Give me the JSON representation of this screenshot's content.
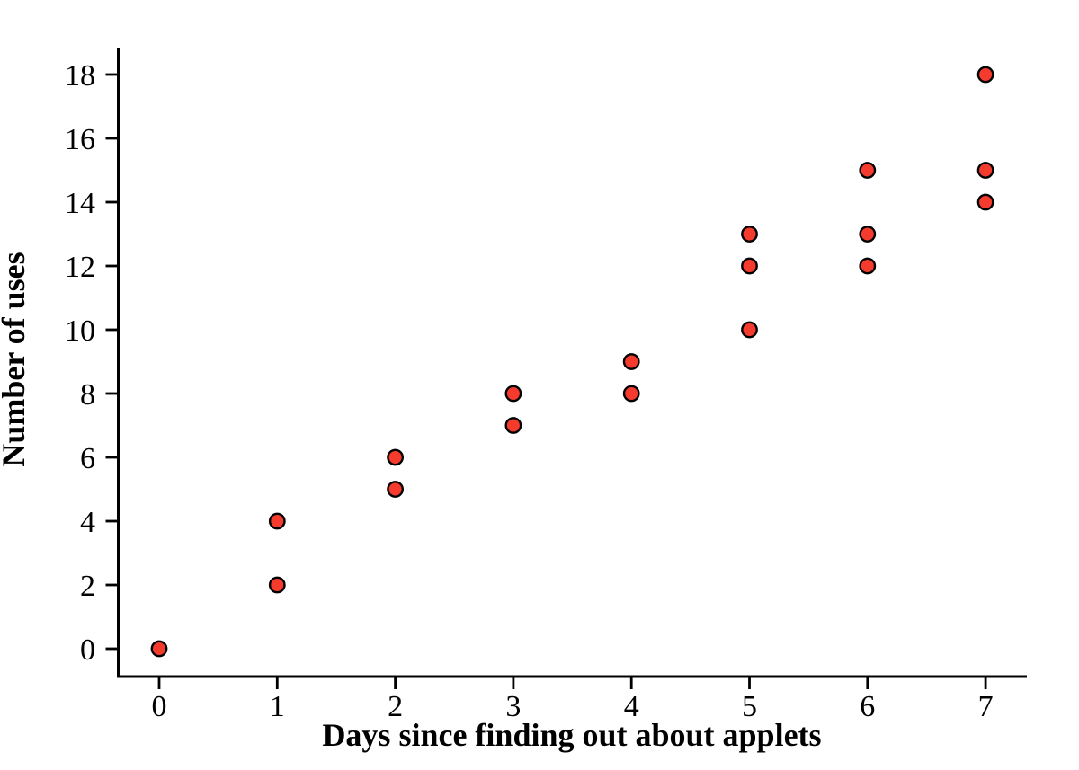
{
  "figure": {
    "background": "#ffffff"
  },
  "chart_data": {
    "type": "scatter",
    "title": "",
    "xlabel": "Days since finding out about applets",
    "ylabel": "Number of uses",
    "x_ticks": [
      0,
      1,
      2,
      3,
      4,
      5,
      6,
      7
    ],
    "y_ticks": [
      0,
      2,
      4,
      6,
      8,
      10,
      12,
      14,
      16,
      18
    ],
    "xlim": [
      0,
      7
    ],
    "ylim": [
      0,
      18
    ],
    "grid": false,
    "legend": false,
    "axis_color": "#000000",
    "marker": {
      "shape": "circle",
      "fill": "#f43b2d",
      "stroke": "#000000"
    },
    "points": [
      {
        "x": 0,
        "y": 0
      },
      {
        "x": 1,
        "y": 2
      },
      {
        "x": 1,
        "y": 4
      },
      {
        "x": 2,
        "y": 5
      },
      {
        "x": 2,
        "y": 6
      },
      {
        "x": 3,
        "y": 7
      },
      {
        "x": 3,
        "y": 8
      },
      {
        "x": 4,
        "y": 8
      },
      {
        "x": 4,
        "y": 9
      },
      {
        "x": 5,
        "y": 10
      },
      {
        "x": 5,
        "y": 12
      },
      {
        "x": 5,
        "y": 13
      },
      {
        "x": 6,
        "y": 12
      },
      {
        "x": 6,
        "y": 13
      },
      {
        "x": 6,
        "y": 15
      },
      {
        "x": 7,
        "y": 14
      },
      {
        "x": 7,
        "y": 15
      },
      {
        "x": 7,
        "y": 18
      }
    ]
  }
}
